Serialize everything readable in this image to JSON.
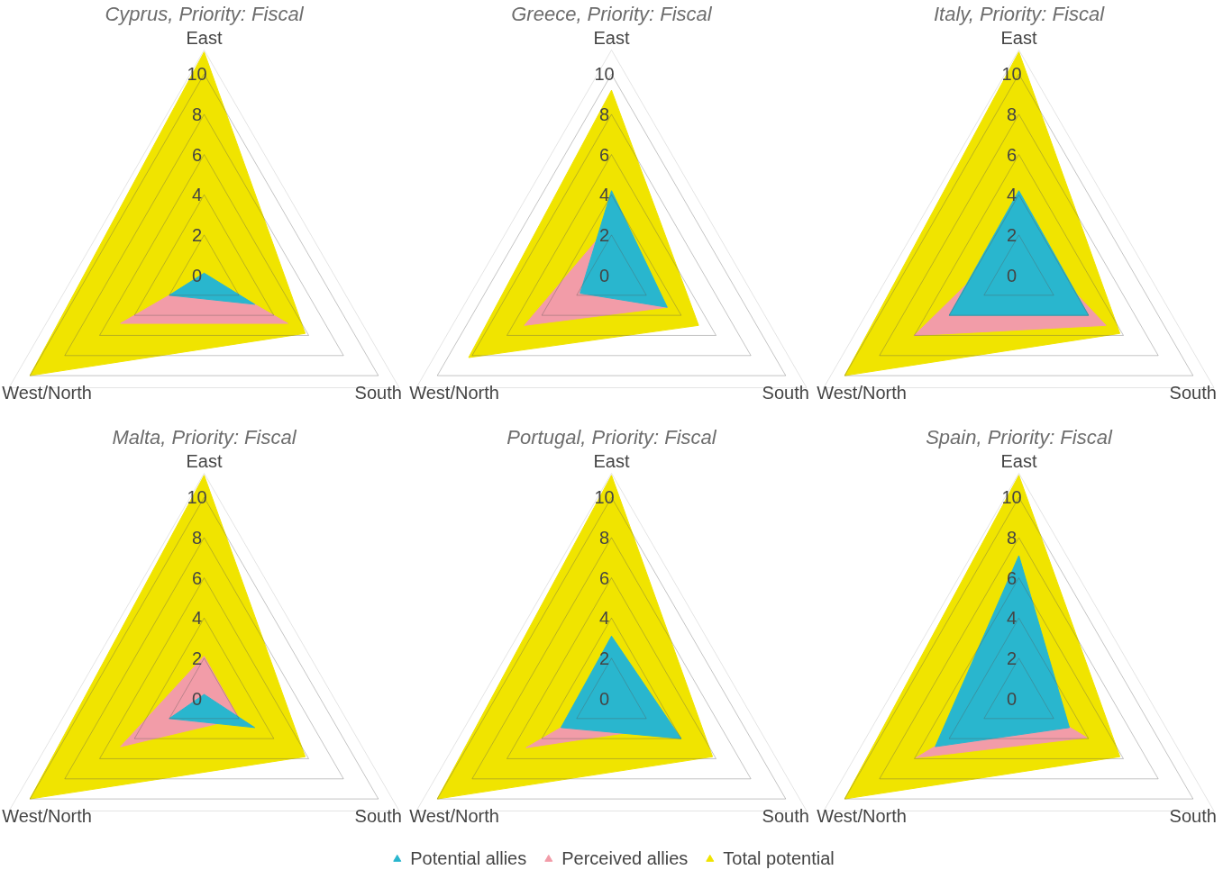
{
  "chart_data": [
    {
      "type": "radar",
      "title": "Cyprus, Priority: Fiscal",
      "categories": [
        "East",
        "South",
        "West/North"
      ],
      "ylim": [
        0,
        11.2
      ],
      "yticks": [
        0,
        2,
        4,
        6,
        8,
        10
      ],
      "legend": "bottom",
      "series": [
        {
          "name": "Total potential",
          "color": "#f0e400",
          "values": [
            11.1,
            5.8,
            10
          ]
        },
        {
          "name": "Perceived allies",
          "color": "#f29ca8",
          "values": [
            0,
            4.8,
            4.8
          ]
        },
        {
          "name": "Potential allies",
          "color": "#29b6ce",
          "values": [
            0.1,
            2.9,
            2
          ]
        }
      ]
    },
    {
      "type": "radar",
      "title": "Greece, Priority: Fiscal",
      "categories": [
        "East",
        "South",
        "West/North"
      ],
      "ylim": [
        0,
        11.2
      ],
      "yticks": [
        0,
        2,
        4,
        6,
        8,
        10
      ],
      "legend": "bottom",
      "series": [
        {
          "name": "Total potential",
          "color": "#f0e400",
          "values": [
            9.2,
            5,
            8.2
          ]
        },
        {
          "name": "Perceived allies",
          "color": "#f29ca8",
          "values": [
            2.6,
            3.2,
            5
          ]
        },
        {
          "name": "Potential allies",
          "color": "#29b6ce",
          "values": [
            4.2,
            3.2,
            1.8
          ]
        }
      ]
    },
    {
      "type": "radar",
      "title": "Italy, Priority: Fiscal",
      "categories": [
        "East",
        "South",
        "West/North"
      ],
      "ylim": [
        0,
        11.2
      ],
      "yticks": [
        0,
        2,
        4,
        6,
        8,
        10
      ],
      "legend": "bottom",
      "series": [
        {
          "name": "Total potential",
          "color": "#f0e400",
          "values": [
            11.1,
            5.8,
            10
          ]
        },
        {
          "name": "Perceived allies",
          "color": "#f29ca8",
          "values": [
            2.1,
            5,
            6
          ]
        },
        {
          "name": "Potential allies",
          "color": "#29b6ce",
          "values": [
            4.2,
            4,
            4
          ]
        }
      ]
    },
    {
      "type": "radar",
      "title": "Malta, Priority: Fiscal",
      "categories": [
        "East",
        "South",
        "West/North"
      ],
      "ylim": [
        0,
        11.2
      ],
      "yticks": [
        0,
        2,
        4,
        6,
        8,
        10
      ],
      "legend": "bottom",
      "series": [
        {
          "name": "Total potential",
          "color": "#f0e400",
          "values": [
            11.1,
            5.8,
            10
          ]
        },
        {
          "name": "Perceived allies",
          "color": "#f29ca8",
          "values": [
            2.1,
            2,
            4.8
          ]
        },
        {
          "name": "Potential allies",
          "color": "#29b6ce",
          "values": [
            0.2,
            2.9,
            2
          ]
        }
      ]
    },
    {
      "type": "radar",
      "title": "Portugal, Priority: Fiscal",
      "categories": [
        "East",
        "South",
        "West/North"
      ],
      "ylim": [
        0,
        11.2
      ],
      "yticks": [
        0,
        2,
        4,
        6,
        8,
        10
      ],
      "legend": "bottom",
      "series": [
        {
          "name": "Total potential",
          "color": "#f0e400",
          "values": [
            11.1,
            5.8,
            10
          ]
        },
        {
          "name": "Perceived allies",
          "color": "#f29ca8",
          "values": [
            0,
            2.9,
            4.9
          ]
        },
        {
          "name": "Potential allies",
          "color": "#29b6ce",
          "values": [
            3.1,
            4,
            2.9
          ]
        }
      ]
    },
    {
      "type": "radar",
      "title": "Spain, Priority: Fiscal",
      "categories": [
        "East",
        "South",
        "West/North"
      ],
      "ylim": [
        0,
        11.2
      ],
      "yticks": [
        0,
        2,
        4,
        6,
        8,
        10
      ],
      "legend": "bottom",
      "series": [
        {
          "name": "Total potential",
          "color": "#f0e400",
          "values": [
            11.1,
            5.8,
            10
          ]
        },
        {
          "name": "Perceived allies",
          "color": "#f29ca8",
          "values": [
            0.1,
            3.9,
            5.9
          ]
        },
        {
          "name": "Potential allies",
          "color": "#29b6ce",
          "values": [
            7.1,
            2.9,
            4.8
          ]
        }
      ]
    }
  ]
}
